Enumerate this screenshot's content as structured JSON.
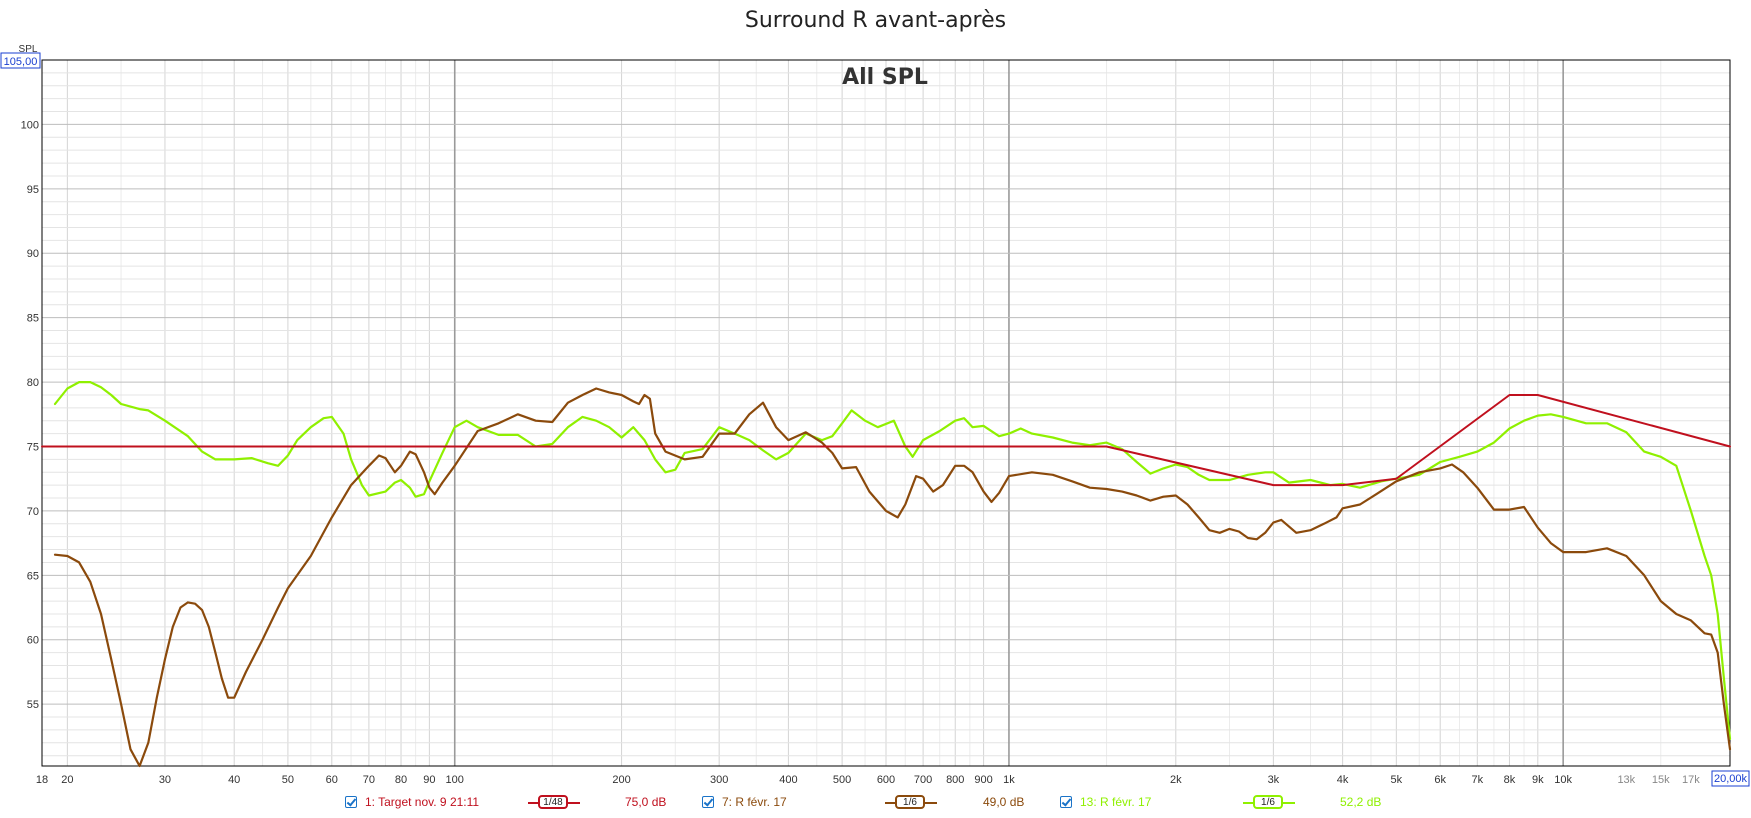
{
  "title": "Surround R avant-après",
  "chart_data": {
    "type": "line",
    "title": "All SPL",
    "ylabel": "SPL",
    "xlabel": "",
    "x_scale": "log",
    "xlim": [
      18,
      20000
    ],
    "ylim": [
      50.2,
      105
    ],
    "y_top_readout": "105,00",
    "x_right_readout": "20,00k",
    "y_ticks": [
      55,
      60,
      65,
      70,
      75,
      80,
      85,
      90,
      95,
      100
    ],
    "x_ticks": [
      {
        "v": 18,
        "label": "18"
      },
      {
        "v": 20,
        "label": "20"
      },
      {
        "v": 30,
        "label": "30"
      },
      {
        "v": 40,
        "label": "40"
      },
      {
        "v": 50,
        "label": "50"
      },
      {
        "v": 60,
        "label": "60"
      },
      {
        "v": 70,
        "label": "70"
      },
      {
        "v": 80,
        "label": "80"
      },
      {
        "v": 90,
        "label": "90"
      },
      {
        "v": 100,
        "label": "100"
      },
      {
        "v": 200,
        "label": "200"
      },
      {
        "v": 300,
        "label": "300"
      },
      {
        "v": 400,
        "label": "400"
      },
      {
        "v": 500,
        "label": "500"
      },
      {
        "v": 600,
        "label": "600"
      },
      {
        "v": 700,
        "label": "700"
      },
      {
        "v": 800,
        "label": "800"
      },
      {
        "v": 900,
        "label": "900"
      },
      {
        "v": 1000,
        "label": "1k"
      },
      {
        "v": 2000,
        "label": "2k"
      },
      {
        "v": 3000,
        "label": "3k"
      },
      {
        "v": 4000,
        "label": "4k"
      },
      {
        "v": 5000,
        "label": "5k"
      },
      {
        "v": 6000,
        "label": "6k"
      },
      {
        "v": 7000,
        "label": "7k"
      },
      {
        "v": 8000,
        "label": "8k"
      },
      {
        "v": 9000,
        "label": "9k"
      },
      {
        "v": 10000,
        "label": "10k"
      },
      {
        "v": 13000,
        "label": "13k"
      },
      {
        "v": 15000,
        "label": "15k"
      },
      {
        "v": 17000,
        "label": "17k"
      }
    ],
    "grid": true,
    "legend_position": "bottom",
    "series": [
      {
        "name": "1: Target nov. 9 21:11",
        "color": "#c0101e",
        "smoothing": "1/48",
        "level": "75,0 dB",
        "points": [
          [
            18,
            75
          ],
          [
            1500,
            75
          ],
          [
            3000,
            72
          ],
          [
            4000,
            72
          ],
          [
            5000,
            72.5
          ],
          [
            8000,
            79
          ],
          [
            9000,
            79
          ],
          [
            20000,
            75
          ]
        ]
      },
      {
        "name": "7: R févr. 17",
        "color": "#8b4a0c",
        "smoothing": "1/6",
        "level": "49,0 dB",
        "points": [
          [
            19,
            66.6
          ],
          [
            20,
            66.5
          ],
          [
            21,
            66
          ],
          [
            22,
            64.5
          ],
          [
            23,
            62
          ],
          [
            24,
            58.5
          ],
          [
            25,
            55
          ],
          [
            26,
            51.5
          ],
          [
            27,
            50.2
          ],
          [
            28,
            52
          ],
          [
            29,
            55.5
          ],
          [
            30,
            58.5
          ],
          [
            31,
            61
          ],
          [
            32,
            62.5
          ],
          [
            33,
            62.9
          ],
          [
            34,
            62.8
          ],
          [
            35,
            62.3
          ],
          [
            36,
            61
          ],
          [
            37,
            59
          ],
          [
            38,
            57
          ],
          [
            39,
            55.5
          ],
          [
            40,
            55.5
          ],
          [
            42,
            57.5
          ],
          [
            45,
            60
          ],
          [
            48,
            62.5
          ],
          [
            50,
            64
          ],
          [
            55,
            66.5
          ],
          [
            60,
            69.5
          ],
          [
            65,
            72
          ],
          [
            70,
            73.5
          ],
          [
            73,
            74.3
          ],
          [
            75,
            74.1
          ],
          [
            78,
            73
          ],
          [
            80,
            73.5
          ],
          [
            83,
            74.6
          ],
          [
            85,
            74.4
          ],
          [
            88,
            73
          ],
          [
            90,
            71.8
          ],
          [
            92,
            71.3
          ],
          [
            95,
            72.2
          ],
          [
            100,
            73.5
          ],
          [
            110,
            76.2
          ],
          [
            120,
            76.8
          ],
          [
            130,
            77.5
          ],
          [
            140,
            77
          ],
          [
            150,
            76.9
          ],
          [
            160,
            78.4
          ],
          [
            170,
            79
          ],
          [
            180,
            79.5
          ],
          [
            190,
            79.2
          ],
          [
            200,
            79
          ],
          [
            210,
            78.5
          ],
          [
            215,
            78.3
          ],
          [
            220,
            79
          ],
          [
            225,
            78.7
          ],
          [
            230,
            76
          ],
          [
            240,
            74.6
          ],
          [
            260,
            74
          ],
          [
            280,
            74.2
          ],
          [
            300,
            76
          ],
          [
            320,
            76
          ],
          [
            340,
            77.5
          ],
          [
            360,
            78.4
          ],
          [
            380,
            76.5
          ],
          [
            400,
            75.5
          ],
          [
            430,
            76.1
          ],
          [
            460,
            75.3
          ],
          [
            480,
            74.5
          ],
          [
            500,
            73.3
          ],
          [
            530,
            73.4
          ],
          [
            560,
            71.5
          ],
          [
            600,
            70
          ],
          [
            630,
            69.5
          ],
          [
            650,
            70.5
          ],
          [
            680,
            72.7
          ],
          [
            700,
            72.5
          ],
          [
            730,
            71.5
          ],
          [
            760,
            72
          ],
          [
            800,
            73.5
          ],
          [
            830,
            73.5
          ],
          [
            860,
            73
          ],
          [
            900,
            71.5
          ],
          [
            930,
            70.7
          ],
          [
            960,
            71.4
          ],
          [
            1000,
            72.7
          ],
          [
            1100,
            73
          ],
          [
            1200,
            72.8
          ],
          [
            1300,
            72.3
          ],
          [
            1400,
            71.8
          ],
          [
            1500,
            71.7
          ],
          [
            1600,
            71.5
          ],
          [
            1700,
            71.2
          ],
          [
            1800,
            70.8
          ],
          [
            1900,
            71.1
          ],
          [
            2000,
            71.2
          ],
          [
            2100,
            70.5
          ],
          [
            2200,
            69.5
          ],
          [
            2300,
            68.5
          ],
          [
            2400,
            68.3
          ],
          [
            2500,
            68.6
          ],
          [
            2600,
            68.4
          ],
          [
            2700,
            67.9
          ],
          [
            2800,
            67.8
          ],
          [
            2900,
            68.3
          ],
          [
            3000,
            69.1
          ],
          [
            3100,
            69.3
          ],
          [
            3300,
            68.3
          ],
          [
            3500,
            68.5
          ],
          [
            3700,
            69
          ],
          [
            3900,
            69.5
          ],
          [
            4000,
            70.2
          ],
          [
            4300,
            70.5
          ],
          [
            4600,
            71.3
          ],
          [
            5000,
            72.3
          ],
          [
            5500,
            73
          ],
          [
            6000,
            73.3
          ],
          [
            6300,
            73.6
          ],
          [
            6600,
            73
          ],
          [
            7000,
            71.8
          ],
          [
            7500,
            70.1
          ],
          [
            8000,
            70.1
          ],
          [
            8500,
            70.3
          ],
          [
            9000,
            68.7
          ],
          [
            9500,
            67.5
          ],
          [
            10000,
            66.8
          ],
          [
            11000,
            66.8
          ],
          [
            12000,
            67.1
          ],
          [
            13000,
            66.5
          ],
          [
            14000,
            65
          ],
          [
            15000,
            63
          ],
          [
            16000,
            62
          ],
          [
            17000,
            61.5
          ],
          [
            18000,
            60.5
          ],
          [
            18500,
            60.4
          ],
          [
            19000,
            59
          ],
          [
            19500,
            55
          ],
          [
            20000,
            51.5
          ]
        ]
      },
      {
        "name": "13: R févr. 17",
        "color": "#8ff000",
        "smoothing": "1/6",
        "level": "52,2 dB",
        "points": [
          [
            19,
            78.3
          ],
          [
            20,
            79.5
          ],
          [
            21,
            80
          ],
          [
            22,
            80
          ],
          [
            23,
            79.6
          ],
          [
            24,
            79
          ],
          [
            25,
            78.3
          ],
          [
            27,
            77.9
          ],
          [
            28,
            77.8
          ],
          [
            30,
            77
          ],
          [
            33,
            75.8
          ],
          [
            35,
            74.6
          ],
          [
            37,
            74
          ],
          [
            40,
            74
          ],
          [
            43,
            74.1
          ],
          [
            46,
            73.7
          ],
          [
            48,
            73.5
          ],
          [
            50,
            74.3
          ],
          [
            52,
            75.5
          ],
          [
            55,
            76.5
          ],
          [
            58,
            77.2
          ],
          [
            60,
            77.3
          ],
          [
            63,
            76
          ],
          [
            65,
            74
          ],
          [
            68,
            72
          ],
          [
            70,
            71.2
          ],
          [
            75,
            71.5
          ],
          [
            78,
            72.2
          ],
          [
            80,
            72.4
          ],
          [
            83,
            71.8
          ],
          [
            85,
            71.1
          ],
          [
            88,
            71.3
          ],
          [
            90,
            72.3
          ],
          [
            95,
            74.5
          ],
          [
            100,
            76.5
          ],
          [
            105,
            77
          ],
          [
            110,
            76.5
          ],
          [
            120,
            75.9
          ],
          [
            130,
            75.9
          ],
          [
            140,
            75
          ],
          [
            150,
            75.2
          ],
          [
            160,
            76.5
          ],
          [
            170,
            77.3
          ],
          [
            180,
            77
          ],
          [
            190,
            76.5
          ],
          [
            200,
            75.7
          ],
          [
            210,
            76.5
          ],
          [
            220,
            75.5
          ],
          [
            230,
            74
          ],
          [
            240,
            73
          ],
          [
            250,
            73.2
          ],
          [
            260,
            74.5
          ],
          [
            280,
            74.8
          ],
          [
            300,
            76.5
          ],
          [
            320,
            76
          ],
          [
            340,
            75.5
          ],
          [
            360,
            74.7
          ],
          [
            380,
            74
          ],
          [
            400,
            74.5
          ],
          [
            430,
            76
          ],
          [
            460,
            75.5
          ],
          [
            480,
            75.8
          ],
          [
            500,
            76.8
          ],
          [
            520,
            77.8
          ],
          [
            550,
            77
          ],
          [
            580,
            76.5
          ],
          [
            620,
            77
          ],
          [
            650,
            75
          ],
          [
            670,
            74.2
          ],
          [
            700,
            75.5
          ],
          [
            750,
            76.2
          ],
          [
            800,
            77
          ],
          [
            830,
            77.2
          ],
          [
            860,
            76.5
          ],
          [
            900,
            76.6
          ],
          [
            960,
            75.8
          ],
          [
            1000,
            76
          ],
          [
            1050,
            76.4
          ],
          [
            1100,
            76
          ],
          [
            1200,
            75.7
          ],
          [
            1300,
            75.3
          ],
          [
            1400,
            75.1
          ],
          [
            1500,
            75.3
          ],
          [
            1600,
            74.8
          ],
          [
            1700,
            73.8
          ],
          [
            1800,
            72.9
          ],
          [
            1900,
            73.3
          ],
          [
            2000,
            73.6
          ],
          [
            2100,
            73.4
          ],
          [
            2200,
            72.8
          ],
          [
            2300,
            72.4
          ],
          [
            2500,
            72.4
          ],
          [
            2700,
            72.8
          ],
          [
            2900,
            73
          ],
          [
            3000,
            73
          ],
          [
            3200,
            72.2
          ],
          [
            3500,
            72.4
          ],
          [
            3800,
            72
          ],
          [
            4000,
            72.1
          ],
          [
            4300,
            71.8
          ],
          [
            4700,
            72.3
          ],
          [
            5000,
            72.5
          ],
          [
            5500,
            72.8
          ],
          [
            6000,
            73.8
          ],
          [
            6500,
            74.2
          ],
          [
            7000,
            74.6
          ],
          [
            7500,
            75.3
          ],
          [
            8000,
            76.4
          ],
          [
            8500,
            77
          ],
          [
            9000,
            77.4
          ],
          [
            9500,
            77.5
          ],
          [
            10000,
            77.3
          ],
          [
            11000,
            76.8
          ],
          [
            12000,
            76.8
          ],
          [
            13000,
            76.1
          ],
          [
            14000,
            74.6
          ],
          [
            15000,
            74.2
          ],
          [
            16000,
            73.5
          ],
          [
            17000,
            70
          ],
          [
            18000,
            66.5
          ],
          [
            18500,
            65
          ],
          [
            19000,
            62
          ],
          [
            19500,
            57
          ],
          [
            20000,
            52.3
          ]
        ]
      }
    ]
  },
  "icons": {
    "checkbox": "checkbox-checked-icon",
    "smoothing_badge": "smoothing-badge-icon"
  }
}
